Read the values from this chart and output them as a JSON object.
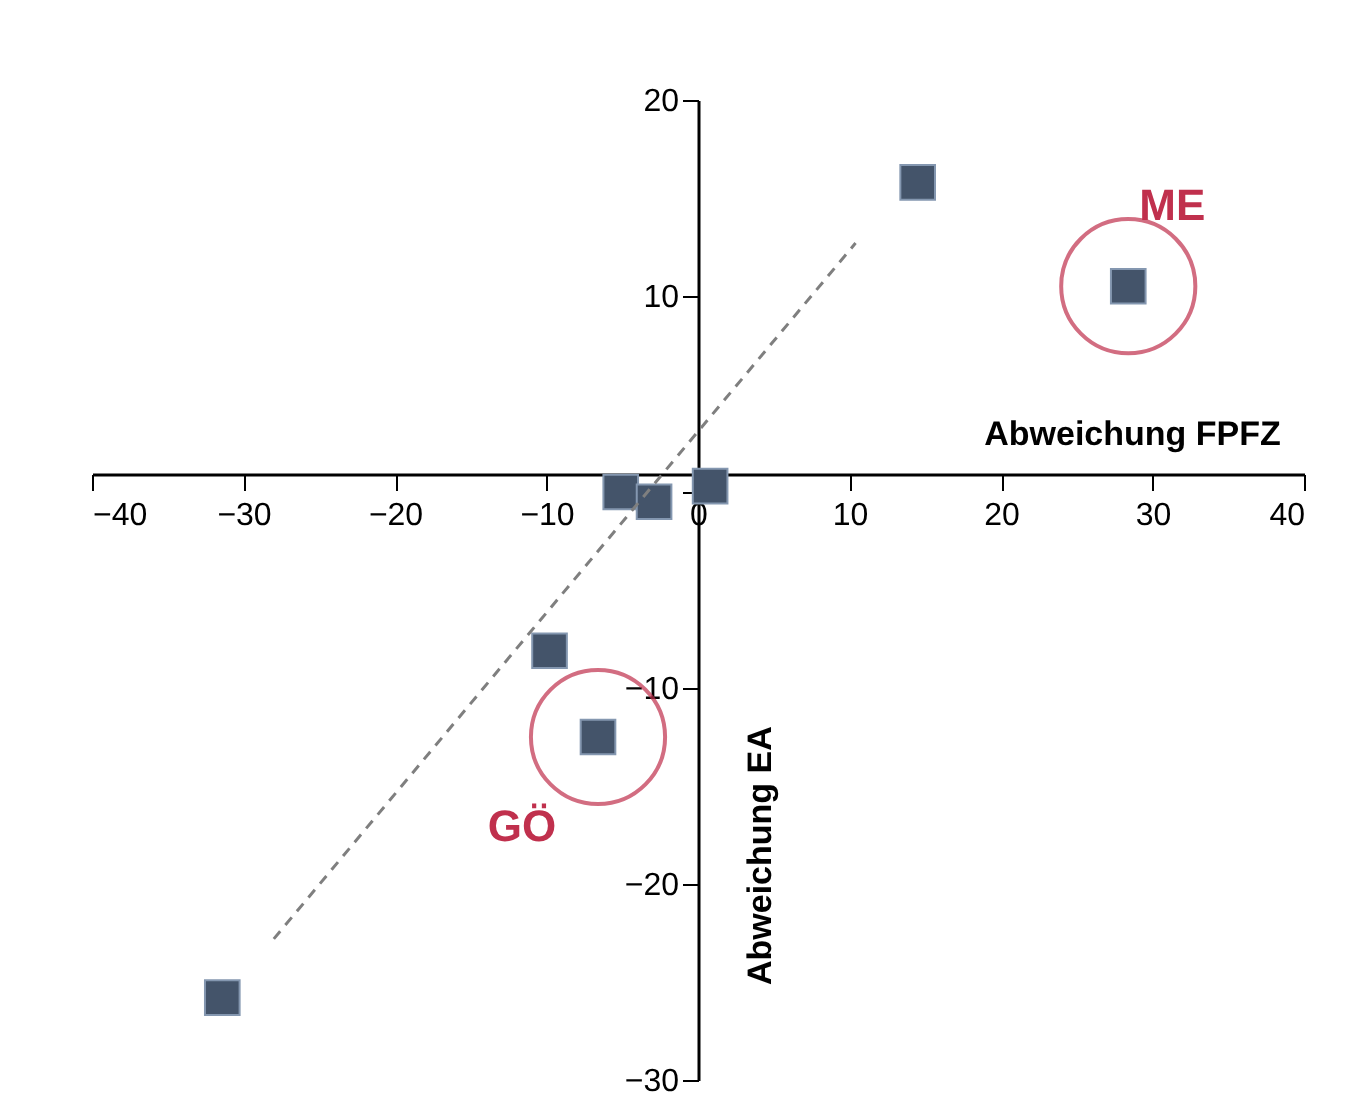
{
  "chart_data": {
    "type": "scatter",
    "xlabel": "Abweichung FPFZ",
    "ylabel": "Abweichung EA",
    "xlim": [
      -40,
      40
    ],
    "ylim": [
      -30,
      20
    ],
    "xticks": [
      -40,
      -30,
      -20,
      -10,
      0,
      10,
      20,
      30,
      40
    ],
    "yticks": [
      -30,
      -20,
      -10,
      {
        "value": 0,
        "label": null
      },
      10,
      20
    ],
    "series": [
      {
        "color": "#44546a",
        "marker": "square",
        "x": [
          14.5,
          28.4,
          -5.1,
          -2.9,
          0.8,
          -9.8,
          -6.6,
          -31.4
        ],
        "values": [
          15.8,
          10.5,
          0,
          -0.5,
          0.3,
          -8.1,
          -12.5,
          -25.8
        ]
      },
      {
        "type": "line",
        "color": "#7f7f7f",
        "line_style": "dashed",
        "x": [
          -28,
          10.4
        ],
        "values": [
          -22.8,
          12.7
        ]
      }
    ],
    "annotations": [
      {
        "text": "ME",
        "x": 28.4,
        "y": 10.5
      },
      {
        "text": "GÖ",
        "x": -6.6,
        "y": -12.5
      }
    ]
  }
}
